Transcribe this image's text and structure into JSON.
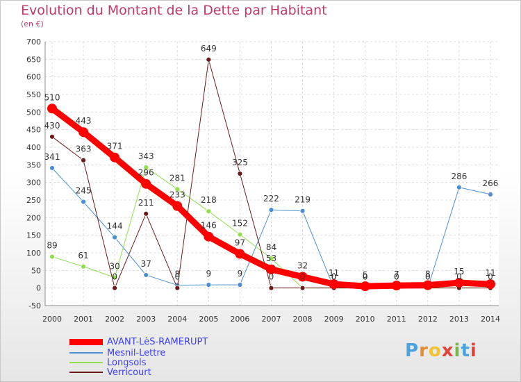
{
  "title": "Evolution du Montant de la Dette par Habitant",
  "subtitle": "(en €)",
  "logo": {
    "text": "Proxiti",
    "colors": [
      "#4aa3df",
      "#e98a2c",
      "#f2c230",
      "#e3433b",
      "#7ab648",
      "#4aa3df",
      "#e3433b"
    ]
  },
  "chart_data": {
    "type": "line",
    "categories": [
      "2000",
      "2001",
      "2002",
      "2003",
      "2004",
      "2005",
      "2006",
      "2007",
      "2008",
      "2009",
      "2010",
      "2011",
      "2012",
      "2013",
      "2014"
    ],
    "ylim": [
      -50,
      700
    ],
    "yticks": [
      "-50",
      "0",
      "50",
      "100",
      "150",
      "200",
      "250",
      "300",
      "350",
      "400",
      "450",
      "500",
      "550",
      "600",
      "650",
      "700"
    ],
    "grid": true,
    "legend_position": "bottom-left",
    "series": [
      {
        "name": "AVANT-LèS-RAMERUPT",
        "color": "#ff0000",
        "width": 9,
        "marker": 7,
        "values": [
          510,
          443,
          371,
          296,
          233,
          146,
          97,
          53,
          32,
          11,
          5,
          7,
          8,
          15,
          11
        ],
        "labels": [
          "510",
          "443",
          "371",
          "296",
          "233",
          "146",
          "97",
          "53",
          "32",
          "11",
          "5",
          "7",
          "8",
          "15",
          "11"
        ]
      },
      {
        "name": "Mesnil-Lettre",
        "color": "#4a8fd0",
        "width": 1,
        "marker": 3.5,
        "values": [
          341,
          245,
          144,
          37,
          8,
          9,
          9,
          222,
          219,
          0,
          0,
          0,
          0,
          286,
          266
        ],
        "labels": [
          "341",
          "245",
          "144",
          "37",
          "8",
          "9",
          "9",
          "222",
          "219",
          "0",
          "0",
          "0",
          "0",
          "286",
          "266"
        ]
      },
      {
        "name": "Longsols",
        "color": "#8fe04a",
        "width": 1,
        "marker": 3.5,
        "values": [
          89,
          61,
          30,
          343,
          281,
          218,
          152,
          84,
          0,
          0,
          0,
          0,
          0,
          0,
          0
        ],
        "labels": [
          "89",
          "61",
          "30",
          "343",
          "281",
          "218",
          "152",
          "84",
          "",
          "",
          "",
          "",
          "",
          "",
          ""
        ]
      },
      {
        "name": "Verricourt",
        "color": "#6b1a1a",
        "width": 1,
        "marker": 3.5,
        "values": [
          430,
          363,
          0,
          211,
          0,
          649,
          325,
          0,
          0,
          0,
          0,
          0,
          0,
          0,
          0
        ],
        "labels": [
          "430",
          "363",
          "0",
          "211",
          "0",
          "649",
          "325",
          "0",
          "0",
          "0",
          "0",
          "0",
          "0",
          "0",
          "0"
        ]
      }
    ]
  }
}
